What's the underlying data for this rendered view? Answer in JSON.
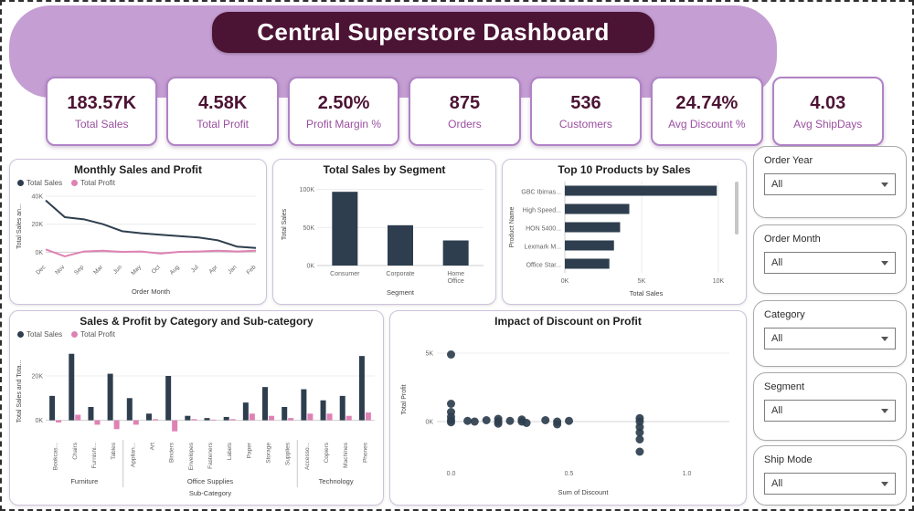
{
  "title": "Central Superstore Dashboard",
  "colors": {
    "header_bg": "#c59ed3",
    "title_bar_bg": "#4c1434",
    "kpi_border": "#b083c6",
    "kpi_value": "#4c1434",
    "kpi_label": "#9a4fa0",
    "sales_series": "#2e3e4e",
    "profit_series": "#de82b4"
  },
  "kpis": [
    {
      "value": "183.57K",
      "label": "Total Sales"
    },
    {
      "value": "4.58K",
      "label": "Total Profit"
    },
    {
      "value": "2.50%",
      "label": "Profit Margin %"
    },
    {
      "value": "875",
      "label": "Orders"
    },
    {
      "value": "536",
      "label": "Customers"
    },
    {
      "value": "24.74%",
      "label": "Avg Discount %"
    },
    {
      "value": "4.03",
      "label": "Avg ShipDays"
    }
  ],
  "slicers": [
    {
      "label": "Order Year",
      "value": "All"
    },
    {
      "label": "Order Month",
      "value": "All"
    },
    {
      "label": "Category",
      "value": "All"
    },
    {
      "label": "Segment",
      "value": "All"
    },
    {
      "label": "Ship Mode",
      "value": "All"
    }
  ],
  "chart_data": [
    {
      "id": "monthly",
      "type": "line",
      "title": "Monthly Sales and Profit",
      "categories": [
        "Dec",
        "Nov",
        "Sep",
        "Mar",
        "Jun",
        "May",
        "Oct",
        "Aug",
        "Jul",
        "Apr",
        "Jan",
        "Feb"
      ],
      "series": [
        {
          "name": "Total Sales",
          "color": "#2e3e4e",
          "values": [
            37,
            25,
            23.5,
            20,
            15,
            13.5,
            12.5,
            11.5,
            10.5,
            8.5,
            4,
            3
          ]
        },
        {
          "name": "Total Profit",
          "color": "#de82b4",
          "values": [
            2,
            -3,
            0.5,
            1,
            0.2,
            0.5,
            -1,
            0.2,
            0.5,
            1,
            0.5,
            1
          ]
        }
      ],
      "xlabel": "Order Month",
      "ylabel": "Total Sales an...",
      "yticks": [
        0,
        20,
        40
      ],
      "ytick_labels": [
        "0K",
        "20K",
        "40K"
      ],
      "ylim": [
        -5,
        42
      ],
      "value_unit": "K"
    },
    {
      "id": "segment",
      "type": "bar",
      "title": "Total Sales by Segment",
      "categories": [
        "Consumer",
        "Corporate",
        "Home Office"
      ],
      "values": [
        97,
        53,
        33
      ],
      "color": "#2e3e4e",
      "xlabel": "Segment",
      "ylabel": "Total Sales",
      "yticks": [
        0,
        50,
        100
      ],
      "ytick_labels": [
        "0K",
        "50K",
        "100K"
      ],
      "ylim": [
        0,
        108
      ],
      "value_unit": "K"
    },
    {
      "id": "top_products",
      "type": "hbar",
      "title": "Top 10 Products by Sales",
      "categories": [
        "GBC Ibimas...",
        "High Speed...",
        "HON 5400...",
        "Lexmark M...",
        "Office Star..."
      ],
      "values": [
        9.9,
        4.2,
        3.6,
        3.2,
        2.9
      ],
      "color": "#2e3e4e",
      "xlabel": "Total Sales",
      "ylabel": "Product Name",
      "xticks": [
        0,
        5,
        10
      ],
      "xtick_labels": [
        "0K",
        "5K",
        "10K"
      ],
      "xlim": [
        0,
        10.6
      ],
      "scrollbar": true,
      "value_unit": "K"
    },
    {
      "id": "category",
      "type": "grouped-bar",
      "title": "Sales & Profit by Category and Sub-category",
      "categories": [
        "Bookcas...",
        "Chairs",
        "Furnishi...",
        "Tables",
        "Applian...",
        "Art",
        "Binders",
        "Envelopes",
        "Fasteners",
        "Labels",
        "Paper",
        "Storage",
        "Supplies",
        "Accesso...",
        "Copiers",
        "Machines",
        "Phones"
      ],
      "groups": [
        {
          "name": "Furniture",
          "span": [
            0,
            3
          ]
        },
        {
          "name": "Office Supplies",
          "span": [
            4,
            12
          ]
        },
        {
          "name": "Technology",
          "span": [
            13,
            16
          ]
        }
      ],
      "series": [
        {
          "name": "Total Sales",
          "color": "#2e3e4e",
          "values": [
            11,
            30,
            6,
            21,
            10,
            3,
            20,
            2,
            1,
            1.5,
            8,
            15,
            6,
            14,
            9,
            11,
            29
          ]
        },
        {
          "name": "Total Profit",
          "color": "#de82b4",
          "values": [
            -1,
            2.5,
            -2,
            -4,
            -2,
            0.5,
            -5,
            0.5,
            0.3,
            0.5,
            3,
            2,
            1,
            3,
            3,
            2,
            3.5
          ]
        }
      ],
      "xlabel": "Sub-Category",
      "ylabel": "Total Sales and Tota...",
      "yticks": [
        0,
        20
      ],
      "ytick_labels": [
        "0K",
        "20K"
      ],
      "ylim": [
        -8,
        34
      ],
      "value_unit": "K"
    },
    {
      "id": "discount",
      "type": "scatter",
      "title": "Impact of Discount on Profit",
      "points": [
        [
          0,
          4.9
        ],
        [
          0,
          1.3
        ],
        [
          0,
          0.7
        ],
        [
          0,
          0.35
        ],
        [
          0,
          0.1
        ],
        [
          0,
          -0.05
        ],
        [
          0.07,
          0.05
        ],
        [
          0.1,
          0
        ],
        [
          0.15,
          0.1
        ],
        [
          0.2,
          0.2
        ],
        [
          0.2,
          0
        ],
        [
          0.2,
          -0.15
        ],
        [
          0.25,
          0.05
        ],
        [
          0.3,
          0.15
        ],
        [
          0.3,
          0
        ],
        [
          0.32,
          -0.1
        ],
        [
          0.4,
          0.1
        ],
        [
          0.45,
          0
        ],
        [
          0.45,
          -0.2
        ],
        [
          0.5,
          0.05
        ],
        [
          0.8,
          0.25
        ],
        [
          0.8,
          0
        ],
        [
          0.8,
          -0.4
        ],
        [
          0.8,
          -0.8
        ],
        [
          0.8,
          -1.3
        ],
        [
          0.8,
          -2.2
        ]
      ],
      "color": "#2e3e4e",
      "xlabel": "Sum of Discount",
      "ylabel": "Total Profit",
      "xticks": [
        0,
        0.5,
        1.0
      ],
      "xtick_labels": [
        "0.0",
        "0.5",
        "1.0"
      ],
      "yticks": [
        0,
        5
      ],
      "ytick_labels": [
        "0K",
        "5K"
      ],
      "xlim": [
        -0.06,
        1.18
      ],
      "ylim": [
        -3,
        6.2
      ],
      "value_unit": "K"
    }
  ]
}
